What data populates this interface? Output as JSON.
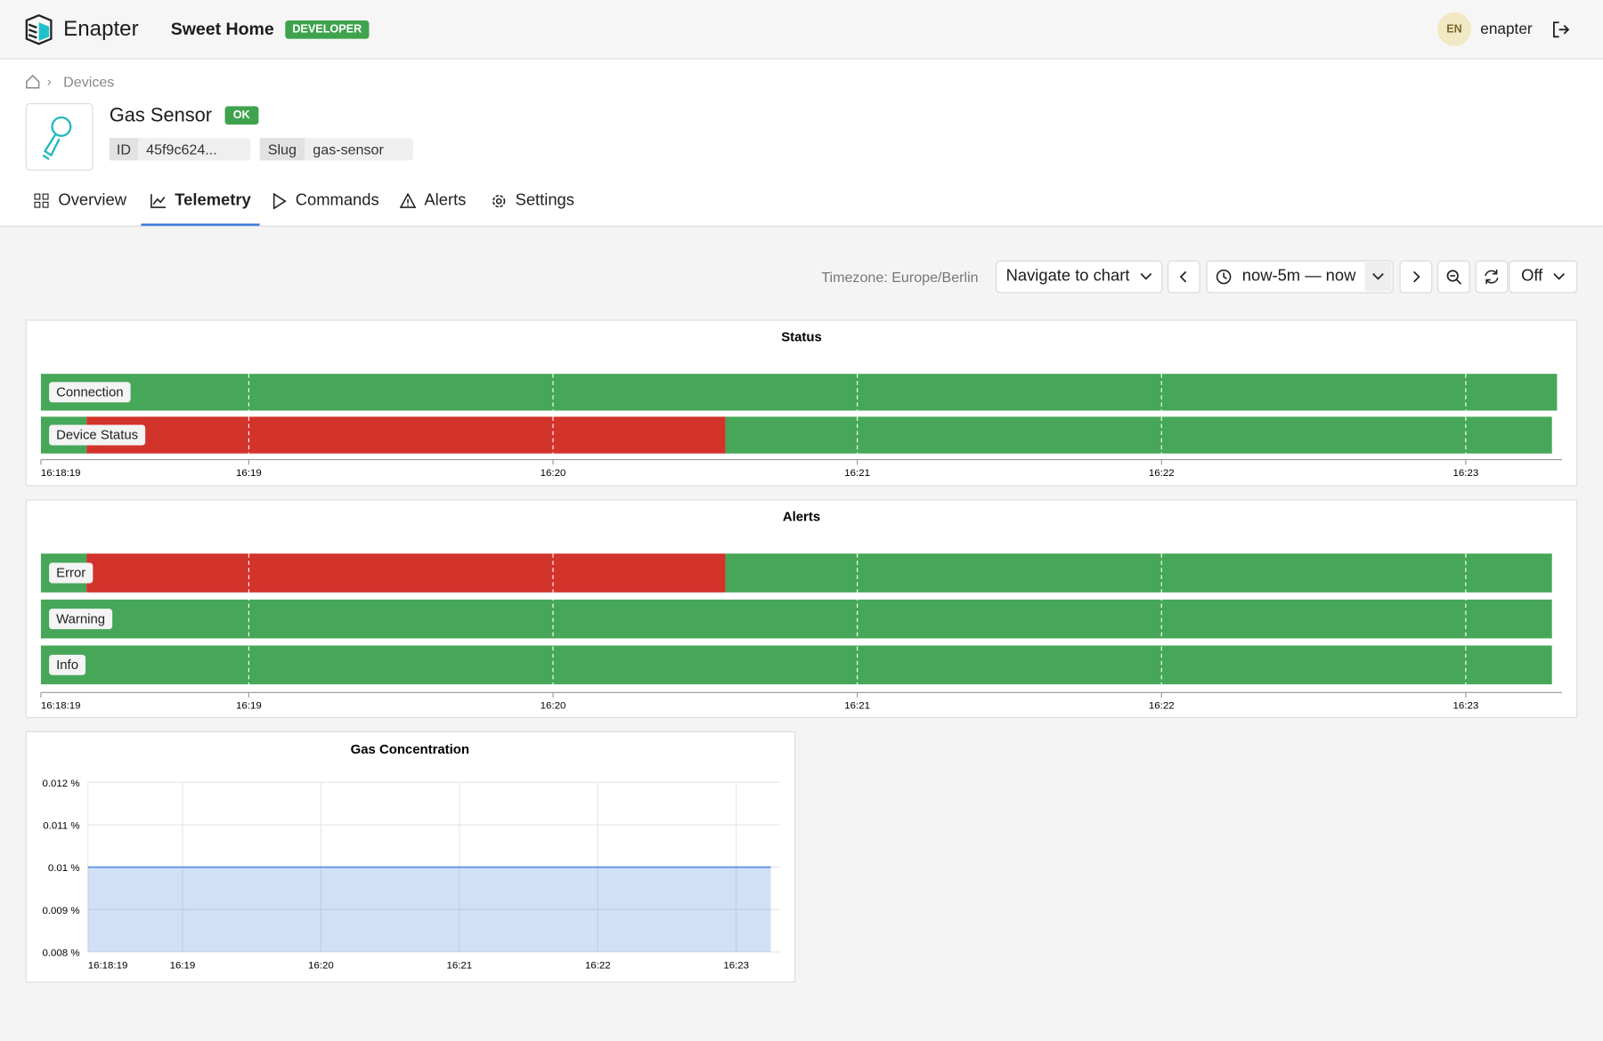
{
  "header": {
    "brand": "Enapter",
    "project": "Sweet Home",
    "badge": "DEVELOPER",
    "avatar": "EN",
    "user": "enapter"
  },
  "breadcrumb": {
    "current": "Devices"
  },
  "device": {
    "name": "Gas Sensor",
    "status": "OK",
    "id_label": "ID",
    "id": "45f9c624...",
    "slug_label": "Slug",
    "slug": "gas-sensor"
  },
  "tabs": {
    "items": [
      "Overview",
      "Telemetry",
      "Commands",
      "Alerts",
      "Settings"
    ],
    "active": 1
  },
  "toolbar": {
    "timezone": "Timezone: Europe/Berlin",
    "navigate": "Navigate to chart",
    "range": "now-5m — now",
    "refresh": "Off"
  },
  "chart_data": [
    {
      "type": "timeline",
      "title": "Status",
      "xlim": [
        58699,
        58999
      ],
      "xticks": [
        {
          "value": 58699,
          "label": "16:18:19"
        },
        {
          "value": 58740,
          "label": "16:19"
        },
        {
          "value": 58800,
          "label": "16:20"
        },
        {
          "value": 58860,
          "label": "16:21"
        },
        {
          "value": 58920,
          "label": "16:22"
        },
        {
          "value": 58980,
          "label": "16:23"
        }
      ],
      "rows": [
        {
          "label": "Connection",
          "segments": [
            {
              "start": 58699,
              "end": 58998,
              "color": "#46a758"
            }
          ]
        },
        {
          "label": "Device Status",
          "segments": [
            {
              "start": 58699,
              "end": 58708,
              "color": "#46a758"
            },
            {
              "start": 58708,
              "end": 58834,
              "color": "#d2332b"
            },
            {
              "start": 58834,
              "end": 58997,
              "color": "#46a758"
            }
          ]
        }
      ]
    },
    {
      "type": "timeline",
      "title": "Alerts",
      "xlim": [
        58699,
        58999
      ],
      "xticks": [
        {
          "value": 58699,
          "label": "16:18:19"
        },
        {
          "value": 58740,
          "label": "16:19"
        },
        {
          "value": 58800,
          "label": "16:20"
        },
        {
          "value": 58860,
          "label": "16:21"
        },
        {
          "value": 58920,
          "label": "16:22"
        },
        {
          "value": 58980,
          "label": "16:23"
        }
      ],
      "rows": [
        {
          "label": "Error",
          "segments": [
            {
              "start": 58699,
              "end": 58708,
              "color": "#46a758"
            },
            {
              "start": 58708,
              "end": 58834,
              "color": "#d2332b"
            },
            {
              "start": 58834,
              "end": 58997,
              "color": "#46a758"
            }
          ]
        },
        {
          "label": "Warning",
          "segments": [
            {
              "start": 58699,
              "end": 58997,
              "color": "#46a758"
            }
          ]
        },
        {
          "label": "Info",
          "segments": [
            {
              "start": 58699,
              "end": 58997,
              "color": "#46a758"
            }
          ]
        }
      ]
    },
    {
      "type": "area",
      "title": "Gas Concentration",
      "xlim": [
        58699,
        58999
      ],
      "ylim": [
        0.008,
        0.012
      ],
      "grid": true,
      "xticks": [
        {
          "value": 58699,
          "label": "16:18:19"
        },
        {
          "value": 58740,
          "label": "16:19"
        },
        {
          "value": 58800,
          "label": "16:20"
        },
        {
          "value": 58860,
          "label": "16:21"
        },
        {
          "value": 58920,
          "label": "16:22"
        },
        {
          "value": 58980,
          "label": "16:23"
        }
      ],
      "yticks": [
        {
          "value": 0.008,
          "label": "0.008 %"
        },
        {
          "value": 0.009,
          "label": "0.009 %"
        },
        {
          "value": 0.01,
          "label": "0.01 %"
        },
        {
          "value": 0.011,
          "label": "0.011 %"
        },
        {
          "value": 0.012,
          "label": "0.012 %"
        }
      ],
      "x": [
        58699,
        58995
      ],
      "series": [
        {
          "values": [
            0.01,
            0.01
          ],
          "color": "#5b8fe0"
        }
      ]
    }
  ]
}
